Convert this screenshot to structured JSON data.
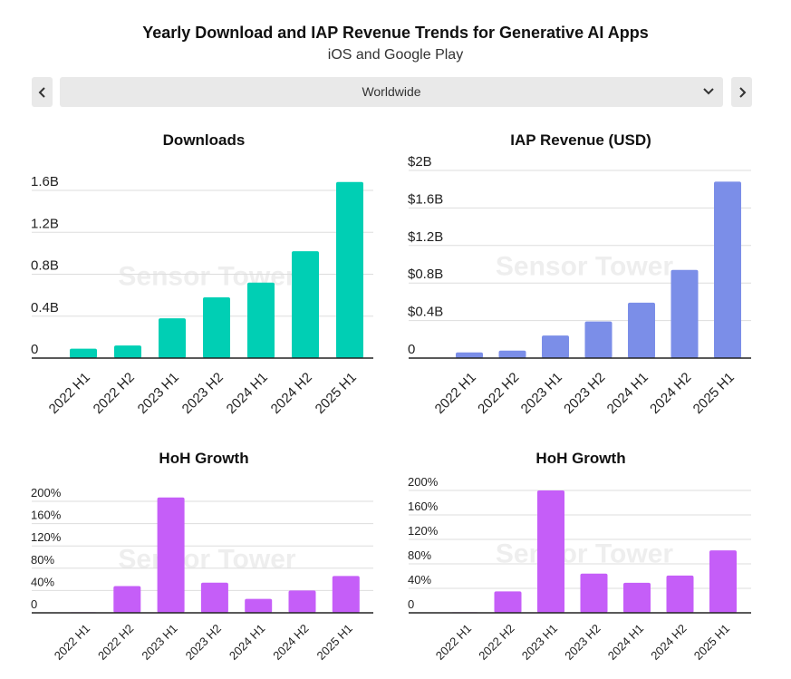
{
  "header": {
    "title": "Yearly Download and IAP Revenue Trends for Generative AI Apps",
    "subtitle": "iOS and Google Play"
  },
  "region_selector": {
    "selected": "Worldwide",
    "prev_icon": "chevron-left-icon",
    "next_icon": "chevron-right-icon",
    "dropdown_icon": "chevron-down-icon"
  },
  "watermark": "Sensor Tower",
  "colors": {
    "downloads": "#00cfb4",
    "revenue": "#7b8ee8",
    "growth": "#c55ef8"
  },
  "chart_data": [
    {
      "id": "downloads",
      "type": "bar",
      "title": "Downloads",
      "categories": [
        "2022 H1",
        "2022 H2",
        "2023 H1",
        "2023 H2",
        "2024 H1",
        "2024 H2",
        "2025 H1"
      ],
      "values": [
        0.09,
        0.12,
        0.38,
        0.58,
        0.72,
        1.02,
        1.68
      ],
      "ylim": [
        0,
        1.6
      ],
      "yticks": [
        0,
        0.4,
        0.8,
        1.2,
        1.6
      ],
      "yticklabels": [
        "0",
        "0.4B",
        "0.8B",
        "1.2B",
        "1.6B"
      ],
      "unit": "B"
    },
    {
      "id": "revenue",
      "type": "bar",
      "title": "IAP Revenue (USD)",
      "categories": [
        "2022 H1",
        "2022 H2",
        "2023 H1",
        "2023 H2",
        "2024 H1",
        "2024 H2",
        "2025 H1"
      ],
      "values": [
        0.06,
        0.08,
        0.24,
        0.39,
        0.59,
        0.94,
        1.88
      ],
      "ylim": [
        0,
        2
      ],
      "yticks": [
        0,
        0.4,
        0.8,
        1.2,
        1.6,
        2
      ],
      "yticklabels": [
        "0",
        "$0.4B",
        "$0.8B",
        "$1.2B",
        "$1.6B",
        "$2B"
      ],
      "unit": "$B"
    },
    {
      "id": "downloads_growth",
      "type": "bar",
      "title": "HoH Growth",
      "categories": [
        "2022 H1",
        "2022 H2",
        "2023 H1",
        "2023 H2",
        "2024 H1",
        "2024 H2",
        "2025 H1"
      ],
      "values": [
        1,
        48,
        207,
        54,
        25,
        40,
        66
      ],
      "ylim": [
        0,
        200
      ],
      "yticks": [
        0,
        40,
        80,
        120,
        160,
        200
      ],
      "yticklabels": [
        "0",
        "40%",
        "80%",
        "120%",
        "160%",
        "200%"
      ],
      "unit": "%"
    },
    {
      "id": "revenue_growth",
      "type": "bar",
      "title": "HoH Growth",
      "categories": [
        "2022 H1",
        "2022 H2",
        "2023 H1",
        "2023 H2",
        "2024 H1",
        "2024 H2",
        "2025 H1"
      ],
      "values": [
        1,
        35,
        200,
        64,
        49,
        61,
        102
      ],
      "ylim": [
        0,
        200
      ],
      "yticks": [
        0,
        40,
        80,
        120,
        160,
        200
      ],
      "yticklabels": [
        "0",
        "40%",
        "80%",
        "120%",
        "160%",
        "200%"
      ],
      "unit": "%"
    }
  ]
}
